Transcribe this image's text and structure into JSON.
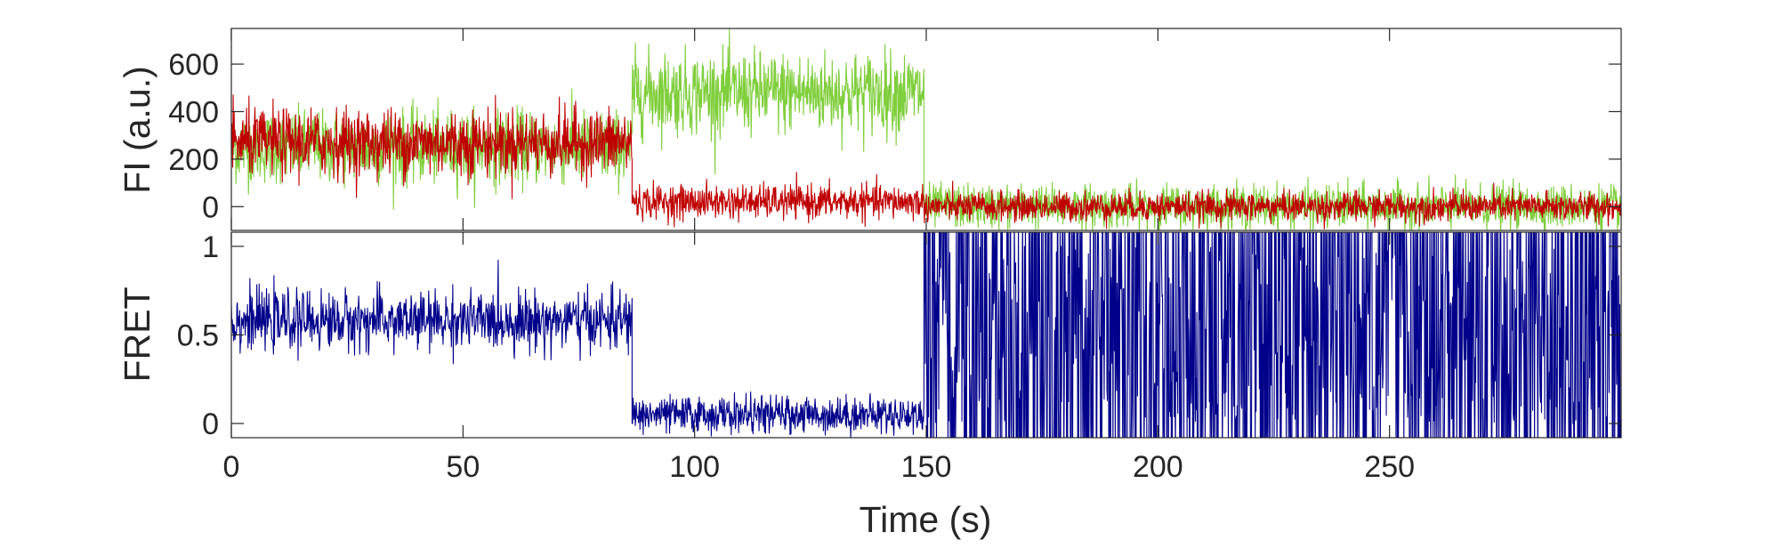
{
  "chart_data": [
    {
      "panel": "top",
      "type": "line",
      "title": "",
      "xlabel": "",
      "ylabel": "FI (a.u.)",
      "xlim": [
        0,
        300
      ],
      "ylim": [
        -100,
        750
      ],
      "yticks": [
        0,
        200,
        400,
        600
      ],
      "ytick_labels": [
        "0",
        "200",
        "400",
        "600"
      ],
      "series": [
        {
          "name": "",
          "color": "#7fce3c",
          "segments": [
            {
              "x_start": 0,
              "x_end": 86.5,
              "mean": 250,
              "noise": 75
            },
            {
              "x_start": 86.5,
              "x_end": 149.5,
              "mean": 480,
              "noise": 85
            },
            {
              "x_start": 149.5,
              "x_end": 300,
              "mean": 0,
              "noise": 45
            }
          ]
        },
        {
          "name": "",
          "color": "#c00000",
          "segments": [
            {
              "x_start": 0,
              "x_end": 86.5,
              "mean": 270,
              "noise": 70
            },
            {
              "x_start": 86.5,
              "x_end": 149.5,
              "mean": 20,
              "noise": 35
            },
            {
              "x_start": 149.5,
              "x_end": 300,
              "mean": 0,
              "noise": 30
            }
          ]
        }
      ]
    },
    {
      "panel": "bottom",
      "type": "line",
      "title": "",
      "xlabel": "Time (s)",
      "ylabel": "FRET",
      "xlim": [
        0,
        300
      ],
      "ylim": [
        -0.08,
        1.08
      ],
      "xticks": [
        0,
        50,
        100,
        150,
        200,
        250
      ],
      "xtick_labels": [
        "0",
        "50",
        "100",
        "150",
        "200",
        "250"
      ],
      "yticks": [
        0,
        0.5,
        1
      ],
      "ytick_labels": [
        "0",
        "0.5",
        "1"
      ],
      "series": [
        {
          "name": "",
          "color": "#00008b",
          "segments": [
            {
              "x_start": 0,
              "x_end": 86.5,
              "mean": 0.58,
              "noise": 0.08
            },
            {
              "x_start": 86.5,
              "x_end": 149.5,
              "mean": 0.05,
              "noise": 0.05
            },
            {
              "x_start": 149.5,
              "x_end": 300,
              "mean": 0.5,
              "noise": "random 0-1"
            }
          ]
        }
      ]
    }
  ]
}
